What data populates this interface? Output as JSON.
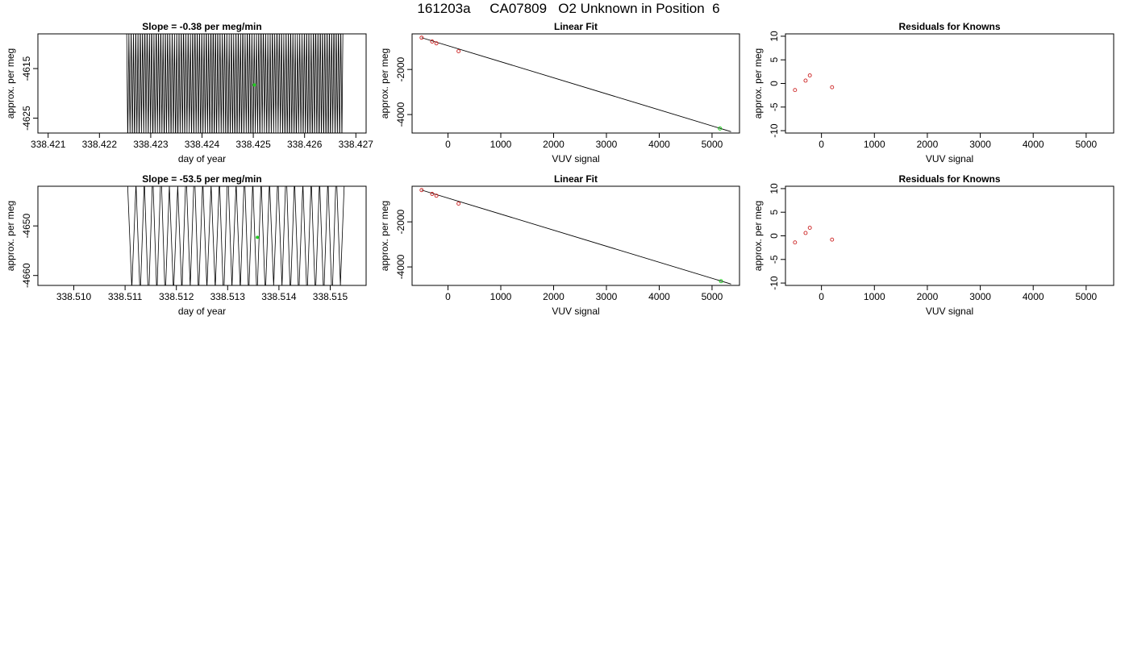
{
  "page_title": "161203a     CA07809   O2 Unknown in Position  6",
  "colors": {
    "known_points": "#cc2222",
    "unknown_point": "#22cc22",
    "line": "#000000",
    "axis": "#000000"
  },
  "chart_data": [
    {
      "type": "line",
      "title": "Slope =  -0.38  per meg/min",
      "xlabel": "day of year",
      "ylabel": "approx. per meg",
      "xlim": [
        338.4208,
        338.4272
      ],
      "ylim": [
        -4628,
        -4608
      ],
      "x_ticks": [
        "338.421",
        "338.422",
        "338.423",
        "338.424",
        "338.425",
        "338.426",
        "338.427"
      ],
      "y_ticks": [
        "-4615",
        "-4625"
      ],
      "trace": {
        "x_start": 338.42253,
        "x_end": 338.42675,
        "y_low": -4628,
        "y_high": -4608,
        "oscillations": 95
      },
      "marker": {
        "x": 338.42502,
        "y": -4618.3
      }
    },
    {
      "type": "scatter",
      "title": "Linear Fit",
      "xlabel": "VUV signal",
      "ylabel": "approx. per meg",
      "xlim": [
        -680,
        5520
      ],
      "ylim": [
        -4820,
        -420
      ],
      "x_ticks": [
        "0",
        "1000",
        "2000",
        "3000",
        "4000",
        "5000"
      ],
      "y_ticks": [
        "-2000",
        "-4000"
      ],
      "fit_line": {
        "x": [
          -500,
          5360
        ],
        "y": [
          -590,
          -4760
        ]
      },
      "known_points": [
        {
          "x": -500,
          "y": -590
        },
        {
          "x": -300,
          "y": -760
        },
        {
          "x": -220,
          "y": -840
        },
        {
          "x": 200,
          "y": -1190
        }
      ],
      "unknown_points": [
        {
          "x": 5150,
          "y": -4618
        }
      ]
    },
    {
      "type": "scatter",
      "title": "Residuals for Knowns",
      "xlabel": "VUV signal",
      "ylabel": "approx. per meg",
      "xlim": [
        -680,
        5520
      ],
      "ylim": [
        -10.5,
        10.5
      ],
      "x_ticks": [
        "0",
        "1000",
        "2000",
        "3000",
        "4000",
        "5000"
      ],
      "y_ticks": [
        "-10",
        "-5",
        "0",
        "5",
        "10"
      ],
      "known_points": [
        {
          "x": -500,
          "y": -1.4
        },
        {
          "x": -300,
          "y": 0.6
        },
        {
          "x": -220,
          "y": 1.7
        },
        {
          "x": 200,
          "y": -0.8
        }
      ]
    },
    {
      "type": "line",
      "title": "Slope =  -53.5  per meg/min",
      "xlabel": "day of year",
      "ylabel": "approx. per meg",
      "xlim": [
        338.5093,
        338.5157
      ],
      "ylim": [
        -4662,
        -4642
      ],
      "x_ticks": [
        "338.510",
        "338.511",
        "338.512",
        "338.513",
        "338.514",
        "338.515"
      ],
      "y_ticks": [
        "-4650",
        "-4660"
      ],
      "trace": {
        "x_start": 338.51105,
        "x_end": 338.51528,
        "y_low": -4662,
        "y_high": -4642,
        "oscillations": 26
      },
      "marker": {
        "x": 338.51358,
        "y": -4652.3
      }
    },
    {
      "type": "scatter",
      "title": "Linear Fit",
      "xlabel": "VUV signal",
      "ylabel": "approx. per meg",
      "xlim": [
        -680,
        5520
      ],
      "ylim": [
        -4820,
        -420
      ],
      "x_ticks": [
        "0",
        "1000",
        "2000",
        "3000",
        "4000",
        "5000"
      ],
      "y_ticks": [
        "-2000",
        "-4000"
      ],
      "fit_line": {
        "x": [
          -500,
          5360
        ],
        "y": [
          -590,
          -4760
        ]
      },
      "known_points": [
        {
          "x": -500,
          "y": -590
        },
        {
          "x": -300,
          "y": -760
        },
        {
          "x": -220,
          "y": -840
        },
        {
          "x": 200,
          "y": -1190
        }
      ],
      "unknown_points": [
        {
          "x": 5170,
          "y": -4632
        }
      ]
    },
    {
      "type": "scatter",
      "title": "Residuals for Knowns",
      "xlabel": "VUV signal",
      "ylabel": "approx. per meg",
      "xlim": [
        -680,
        5520
      ],
      "ylim": [
        -10.5,
        10.5
      ],
      "x_ticks": [
        "0",
        "1000",
        "2000",
        "3000",
        "4000",
        "5000"
      ],
      "y_ticks": [
        "-10",
        "-5",
        "0",
        "5",
        "10"
      ],
      "known_points": [
        {
          "x": -500,
          "y": -1.4
        },
        {
          "x": -300,
          "y": 0.6
        },
        {
          "x": -220,
          "y": 1.7
        },
        {
          "x": 200,
          "y": -0.8
        }
      ]
    }
  ]
}
